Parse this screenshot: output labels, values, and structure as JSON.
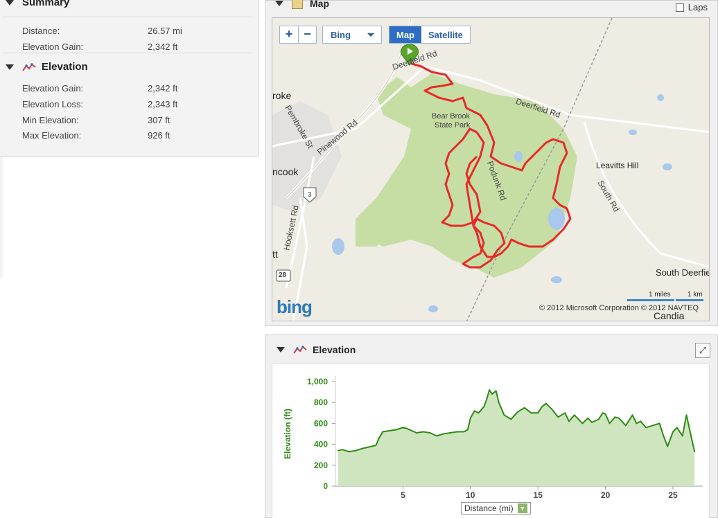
{
  "summary": {
    "title": "Summary",
    "rows": [
      {
        "label": "Distance:",
        "value": "26.57 mi"
      },
      {
        "label": "Elevation Gain:",
        "value": "2,342 ft"
      }
    ]
  },
  "elevation_section": {
    "title": "Elevation",
    "rows": [
      {
        "label": "Elevation Gain:",
        "value": "2,342 ft"
      },
      {
        "label": "Elevation Loss:",
        "value": "2,343 ft"
      },
      {
        "label": "Min Elevation:",
        "value": "307 ft"
      },
      {
        "label": "Max Elevation:",
        "value": "926 ft"
      }
    ]
  },
  "map": {
    "title": "Map",
    "laps_label": "Laps",
    "zoom_in": "+",
    "zoom_out": "−",
    "provider": "Bing",
    "map_types": [
      "Map",
      "Satellite"
    ],
    "active_type": "Map",
    "labels": {
      "deerfield_rd_top": "Deerfield Rd",
      "bear_brook": "Bear Brook",
      "state_park": "State Park",
      "deerfield_rd": "Deerfield Rd",
      "pembroke": "roke",
      "pembroke_st": "Pembroke St",
      "pinewood": "Pinewood Rd",
      "suncook": "ncook",
      "route3": "3",
      "leavitts": "Leavitts Hill",
      "south_rd": "South Rd",
      "podunk": "Podunk Rd",
      "hooksett": "Hooksett Rd",
      "tt": "tt",
      "route28": "28",
      "south_deerfield": "South Deerfie",
      "candia": "Candia"
    },
    "logo": "bing",
    "copyright": "© 2012 Microsoft Corporation    © 2012 NAVTEQ",
    "scale_miles": "1 miles",
    "scale_km": "1 km",
    "route_color": "#e8292a",
    "park_color": "#c6dea4"
  },
  "elevation_chart": {
    "title": "Elevation",
    "x_selector": "Distance (mi)",
    "line_color": "#2d8a14",
    "fill_color": "#cfe5c0"
  },
  "chart_data": {
    "type": "area",
    "title": "",
    "xlabel": "Distance (mi)",
    "ylabel": "Elevation (ft)",
    "xlim": [
      0,
      27
    ],
    "ylim": [
      0,
      1000
    ],
    "xticks": [
      "5",
      "10",
      "15",
      "20",
      "25"
    ],
    "yticks": [
      "0",
      "200",
      "400",
      "600",
      "800",
      "1,000"
    ],
    "series": [
      {
        "name": "Elevation",
        "x": [
          0.2,
          0.5,
          1,
          1.5,
          2,
          2.5,
          3,
          3.2,
          3.5,
          4,
          4.5,
          5,
          5.3,
          6,
          6.5,
          7,
          7.5,
          8,
          8.5,
          9,
          9.5,
          9.8,
          10,
          10.3,
          10.6,
          11,
          11.2,
          11.4,
          11.6,
          11.9,
          12.1,
          12.5,
          13,
          13.5,
          14,
          14.5,
          15,
          15.3,
          15.6,
          16,
          16.5,
          17,
          17.3,
          17.7,
          18,
          18.3,
          18.7,
          19,
          19.5,
          19.8,
          20,
          20.3,
          20.7,
          21,
          21.5,
          22,
          22.3,
          22.6,
          23,
          23.5,
          24,
          24.3,
          24.6,
          25,
          25.3,
          25.7,
          26,
          26.3,
          26.6
        ],
        "y": [
          340,
          350,
          330,
          340,
          360,
          375,
          390,
          450,
          520,
          530,
          540,
          560,
          550,
          510,
          520,
          510,
          480,
          500,
          510,
          520,
          520,
          540,
          650,
          720,
          700,
          760,
          830,
          920,
          880,
          910,
          800,
          680,
          640,
          710,
          750,
          700,
          700,
          760,
          790,
          740,
          660,
          700,
          620,
          680,
          640,
          600,
          650,
          610,
          640,
          700,
          690,
          600,
          660,
          650,
          580,
          680,
          600,
          620,
          560,
          580,
          600,
          480,
          380,
          520,
          560,
          480,
          680,
          500,
          330
        ]
      }
    ]
  }
}
